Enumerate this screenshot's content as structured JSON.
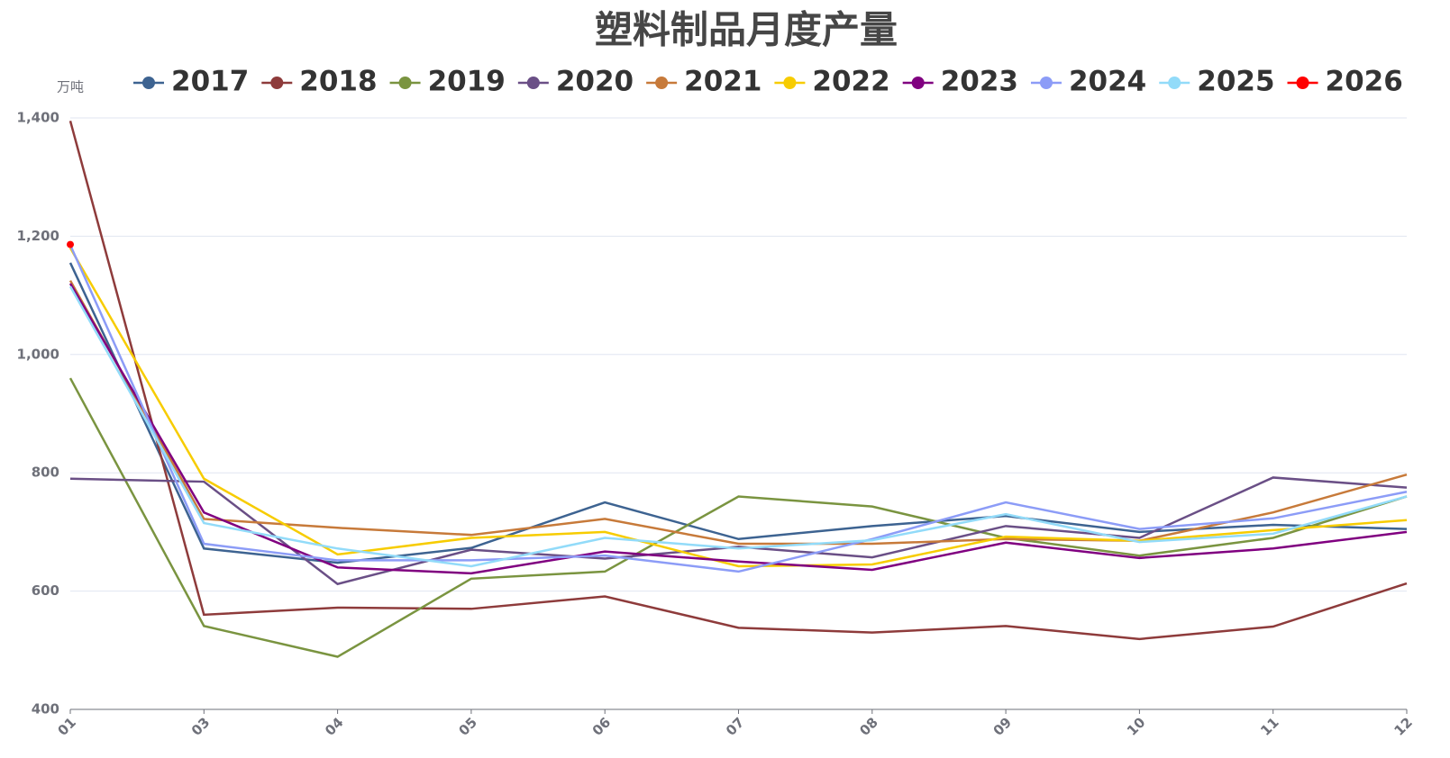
{
  "chart_data": {
    "type": "line",
    "title": "塑料制品月度产量",
    "y_unit": "万吨",
    "categories": [
      "01",
      "03",
      "04",
      "05",
      "06",
      "07",
      "08",
      "09",
      "10",
      "11",
      "12"
    ],
    "ylim": [
      400,
      1400
    ],
    "yticks": [
      400,
      600,
      800,
      {
        "value": 1000,
        "label": "1,000"
      },
      {
        "value": 1200,
        "label": "1,200"
      },
      {
        "value": 1400,
        "label": "1,400"
      }
    ],
    "grid": true,
    "series": [
      {
        "name": "2017",
        "color": "#3d6391",
        "values": [
          1155,
          672,
          648,
          673,
          750,
          688,
          710,
          727,
          700,
          712,
          705
        ]
      },
      {
        "name": "2018",
        "color": "#8e3b3b",
        "values": [
          1395,
          560,
          572,
          570,
          591,
          538,
          530,
          541,
          519,
          540,
          613
        ]
      },
      {
        "name": "2019",
        "color": "#7a9440",
        "values": [
          960,
          541,
          489,
          621,
          633,
          760,
          743,
          690,
          660,
          690,
          760
        ]
      },
      {
        "name": "2020",
        "color": "#6a4f86",
        "values": [
          790,
          785,
          612,
          670,
          655,
          675,
          657,
          710,
          690,
          792,
          775
        ]
      },
      {
        "name": "2021",
        "color": "#c77a3a",
        "values": [
          1125,
          722,
          707,
          695,
          722,
          680,
          680,
          688,
          685,
          733,
          797
        ]
      },
      {
        "name": "2022",
        "color": "#f7cc00",
        "values": [
          1180,
          790,
          662,
          690,
          700,
          642,
          645,
          692,
          685,
          703,
          720
        ]
      },
      {
        "name": "2023",
        "color": "#800080",
        "values": [
          1120,
          733,
          640,
          630,
          667,
          650,
          636,
          682,
          656,
          672,
          700
        ]
      },
      {
        "name": "2024",
        "color": "#8c9cf7",
        "values": [
          1185,
          680,
          652,
          652,
          660,
          633,
          688,
          750,
          705,
          723,
          768
        ]
      },
      {
        "name": "2025",
        "color": "#92dbf9",
        "values": [
          1115,
          715,
          672,
          642,
          690,
          672,
          686,
          730,
          683,
          697,
          760
        ]
      },
      {
        "name": "2026",
        "color": "#ff0000",
        "values": [
          1186,
          null,
          null,
          null,
          null,
          null,
          null,
          null,
          null,
          null,
          null
        ]
      }
    ]
  }
}
